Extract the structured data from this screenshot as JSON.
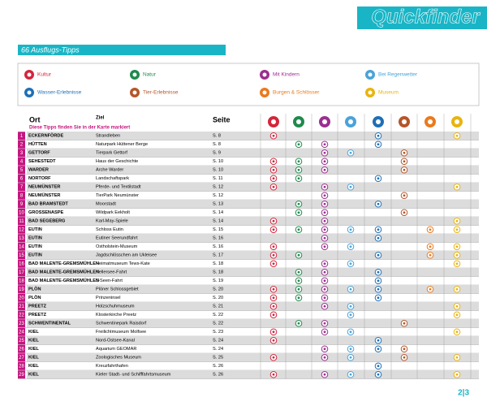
{
  "header": {
    "title": "Quickfinder",
    "banner": "66 Ausflugs-Tipps"
  },
  "legend": [
    {
      "label": "Kultur",
      "color": "#d3263c"
    },
    {
      "label": "Natur",
      "color": "#1f8a4c"
    },
    {
      "label": "Mit Kindern",
      "color": "#9b2f8f"
    },
    {
      "label": "Bei Regenwetter",
      "color": "#4aa3d8"
    },
    {
      "label": "Wasser-Erlebnisse",
      "color": "#1f6fb5"
    },
    {
      "label": "Tier-Erlebnisse",
      "color": "#b5562a"
    },
    {
      "label": "Burgen & Schlösser",
      "color": "#ea7a1e"
    },
    {
      "label": "Museum",
      "color": "#e8b40f"
    }
  ],
  "table": {
    "columns": {
      "ort": "Ort",
      "ziel": "Ziel",
      "seite": "Seite"
    },
    "note": "Diese Tipps finden Sie in der Karte markiert",
    "rows": [
      {
        "nr": "1",
        "ort": "ECKERNFÖRDE",
        "ziel": "Strandleben",
        "seite": "S. 8",
        "icons": [
          1,
          0,
          0,
          0,
          1,
          0,
          0,
          1
        ]
      },
      {
        "nr": "2",
        "ort": "HÜTTEN",
        "ziel": "Naturpark Hüttener Berge",
        "seite": "S. 8",
        "icons": [
          0,
          1,
          1,
          0,
          1,
          0,
          0,
          0
        ]
      },
      {
        "nr": "3",
        "ort": "GETTORF",
        "ziel": "Tierpark Gettorf",
        "seite": "S. 9",
        "icons": [
          0,
          0,
          1,
          1,
          0,
          1,
          0,
          0
        ]
      },
      {
        "nr": "4",
        "ort": "SEHESTEDT",
        "ziel": "Haus der Geschichte",
        "seite": "S. 10",
        "icons": [
          1,
          1,
          1,
          0,
          0,
          1,
          0,
          0
        ]
      },
      {
        "nr": "5",
        "ort": "WARDER",
        "ziel": "Arche Warder",
        "seite": "S. 10",
        "icons": [
          1,
          1,
          1,
          0,
          0,
          1,
          0,
          0
        ]
      },
      {
        "nr": "6",
        "ort": "NORTORF",
        "ziel": "Landschaftspark",
        "seite": "S. 11",
        "icons": [
          1,
          1,
          0,
          0,
          1,
          0,
          0,
          0
        ]
      },
      {
        "nr": "7",
        "ort": "NEUMÜNSTER",
        "ziel": "Pferde- und Textilstadt",
        "seite": "S. 12",
        "icons": [
          1,
          0,
          1,
          1,
          0,
          0,
          0,
          1
        ]
      },
      {
        "nr": "8",
        "ort": "NEUMÜNSTER",
        "ziel": "TierPark Neumünster",
        "seite": "S. 12",
        "icons": [
          0,
          0,
          1,
          0,
          0,
          1,
          0,
          0
        ]
      },
      {
        "nr": "9",
        "ort": "BAD BRAMSTEDT",
        "ziel": "Moorstadt",
        "seite": "S. 13",
        "icons": [
          0,
          1,
          1,
          0,
          1,
          0,
          0,
          0
        ]
      },
      {
        "nr": "10",
        "ort": "GROSSENASPE",
        "ziel": "Wildpark Eekholt",
        "seite": "S. 14",
        "icons": [
          0,
          1,
          1,
          0,
          0,
          1,
          0,
          0
        ]
      },
      {
        "nr": "11",
        "ort": "BAD SEGEBERG",
        "ziel": "Karl-May-Spiele",
        "seite": "S. 14",
        "icons": [
          1,
          0,
          1,
          0,
          0,
          0,
          0,
          1
        ]
      },
      {
        "nr": "12",
        "ort": "EUTIN",
        "ziel": "Schloss Eutin",
        "seite": "S. 15",
        "icons": [
          1,
          1,
          1,
          1,
          1,
          0,
          1,
          1
        ]
      },
      {
        "nr": "13",
        "ort": "EUTIN",
        "ziel": "Eutiner Seerundfahrt",
        "seite": "S. 16",
        "icons": [
          0,
          0,
          1,
          0,
          1,
          0,
          0,
          0
        ]
      },
      {
        "nr": "14",
        "ort": "EUTIN",
        "ziel": "Ostholstein-Museum",
        "seite": "S. 16",
        "icons": [
          1,
          0,
          1,
          1,
          0,
          0,
          1,
          1
        ]
      },
      {
        "nr": "15",
        "ort": "EUTIN",
        "ziel": "Jagdschlösschen am Ukleisee",
        "seite": "S. 17",
        "icons": [
          1,
          1,
          0,
          0,
          1,
          0,
          1,
          1
        ]
      },
      {
        "nr": "16",
        "ort": "BAD MALENTE-GREMSMÜHLEN",
        "ziel": "Heimatmuseum Tews-Kate",
        "seite": "S. 18",
        "icons": [
          1,
          0,
          1,
          1,
          0,
          0,
          0,
          1
        ]
      },
      {
        "nr": "17",
        "ort": "BAD MALENTE-GREMSMÜHLEN",
        "ziel": "Kellersee-Fahrt",
        "seite": "S. 18",
        "icons": [
          0,
          1,
          1,
          0,
          1,
          0,
          0,
          0
        ]
      },
      {
        "nr": "18",
        "ort": "BAD MALENTE-GREMSMÜHLEN",
        "ziel": "5-Seen-Fahrt",
        "seite": "S. 19",
        "icons": [
          0,
          1,
          1,
          0,
          1,
          0,
          0,
          0
        ]
      },
      {
        "nr": "19",
        "ort": "PLÖN",
        "ziel": "Plöner Schlossgebiet",
        "seite": "S. 20",
        "icons": [
          1,
          1,
          1,
          1,
          1,
          0,
          1,
          1
        ]
      },
      {
        "nr": "20",
        "ort": "PLÖN",
        "ziel": "Prinzeninsel",
        "seite": "S. 20",
        "icons": [
          1,
          1,
          1,
          0,
          1,
          0,
          0,
          0
        ]
      },
      {
        "nr": "21",
        "ort": "PREETZ",
        "ziel": "Holzschuhmuseum",
        "seite": "S. 21",
        "icons": [
          1,
          0,
          1,
          1,
          0,
          0,
          0,
          1
        ]
      },
      {
        "nr": "22",
        "ort": "PREETZ",
        "ziel": "Klosterkirche Preetz",
        "seite": "S. 22",
        "icons": [
          1,
          0,
          0,
          1,
          0,
          0,
          0,
          1
        ]
      },
      {
        "nr": "23",
        "ort": "SCHWENTINENTAL",
        "ziel": "Schwentinepark Raisdorf",
        "seite": "S. 22",
        "icons": [
          0,
          1,
          1,
          0,
          0,
          1,
          0,
          0
        ]
      },
      {
        "nr": "24",
        "ort": "KIEL",
        "ziel": "Freilichtmuseum Molfsee",
        "seite": "S. 23",
        "icons": [
          1,
          0,
          1,
          1,
          0,
          0,
          0,
          1
        ]
      },
      {
        "nr": "25",
        "ort": "KIEL",
        "ziel": "Nord-Ostsee-Kanal",
        "seite": "S. 24",
        "icons": [
          1,
          0,
          0,
          0,
          1,
          0,
          0,
          0
        ]
      },
      {
        "nr": "26",
        "ort": "KIEL",
        "ziel": "Aquarium GEOMAR",
        "seite": "S. 24",
        "icons": [
          0,
          0,
          1,
          1,
          1,
          1,
          0,
          0
        ]
      },
      {
        "nr": "27",
        "ort": "KIEL",
        "ziel": "Zoologisches Museum",
        "seite": "S. 25",
        "icons": [
          1,
          0,
          1,
          1,
          0,
          1,
          0,
          1
        ]
      },
      {
        "nr": "28",
        "ort": "KIEL",
        "ziel": "Kreuzfahrthafen",
        "seite": "S. 26",
        "icons": [
          0,
          0,
          0,
          0,
          1,
          0,
          0,
          0
        ]
      },
      {
        "nr": "29",
        "ort": "KIEL",
        "ziel": "Kieler Stadt- und Schifffahrtsmuseum",
        "seite": "S. 26",
        "icons": [
          1,
          0,
          1,
          1,
          1,
          0,
          0,
          1
        ]
      }
    ]
  },
  "footer": {
    "pages": "2|3"
  }
}
